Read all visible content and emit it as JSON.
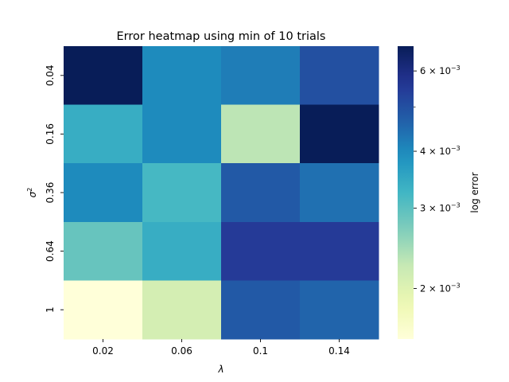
{
  "chart_data": {
    "type": "heatmap",
    "title": "Error heatmap using min of 10 trials",
    "xlabel": "λ",
    "ylabel": "σ",
    "ylabel_superscript": "2",
    "colorbar_label": "log error",
    "colormap": "YlGnBu",
    "colorbar_scale": "log",
    "colorbar_range": [
      0.00155,
      0.0068
    ],
    "colorbar_ticks": [
      {
        "base": "2 × 10",
        "exp": "−3",
        "value": 0.002
      },
      {
        "base": "3 × 10",
        "exp": "−3",
        "value": 0.003
      },
      {
        "base": "4 × 10",
        "exp": "−3",
        "value": 0.004
      },
      {
        "base": "6 × 10",
        "exp": "−3",
        "value": 0.006
      }
    ],
    "colorbar_minor_ticks": [
      0.005
    ],
    "x_categories": [
      "0.02",
      "0.06",
      "0.1",
      "0.14"
    ],
    "y_categories": [
      "0.04",
      "0.16",
      "0.36",
      "0.64",
      "1"
    ],
    "values": [
      [
        0.0068,
        0.004,
        0.0042,
        0.005
      ],
      [
        0.0034,
        0.004,
        0.0023,
        0.0068
      ],
      [
        0.004,
        0.0032,
        0.0048,
        0.0044
      ],
      [
        0.0029,
        0.0034,
        0.0055,
        0.0055
      ],
      [
        0.00155,
        0.0021,
        0.0048,
        0.0046
      ]
    ]
  }
}
